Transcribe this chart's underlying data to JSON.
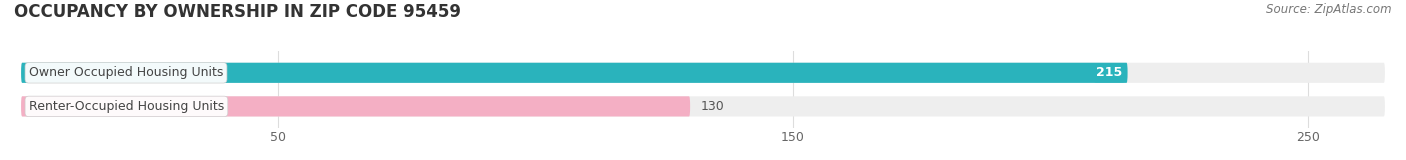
{
  "title": "OCCUPANCY BY OWNERSHIP IN ZIP CODE 95459",
  "source_text": "Source: ZipAtlas.com",
  "categories": [
    "Owner Occupied Housing Units",
    "Renter-Occupied Housing Units"
  ],
  "values": [
    215,
    130
  ],
  "bar_colors": [
    "#2ab3bc",
    "#f4afc4"
  ],
  "value_label_colors": [
    "white",
    "#555555"
  ],
  "value_label_bg": [
    "#2ab3bc",
    "none"
  ],
  "background_color": "#ffffff",
  "bar_bg_color": "#eeeeee",
  "xlim_min": 0,
  "xlim_max": 265,
  "xticks": [
    50,
    150,
    250
  ],
  "title_fontsize": 12,
  "source_fontsize": 8.5,
  "bar_label_fontsize": 9,
  "tick_fontsize": 9,
  "category_fontsize": 9
}
